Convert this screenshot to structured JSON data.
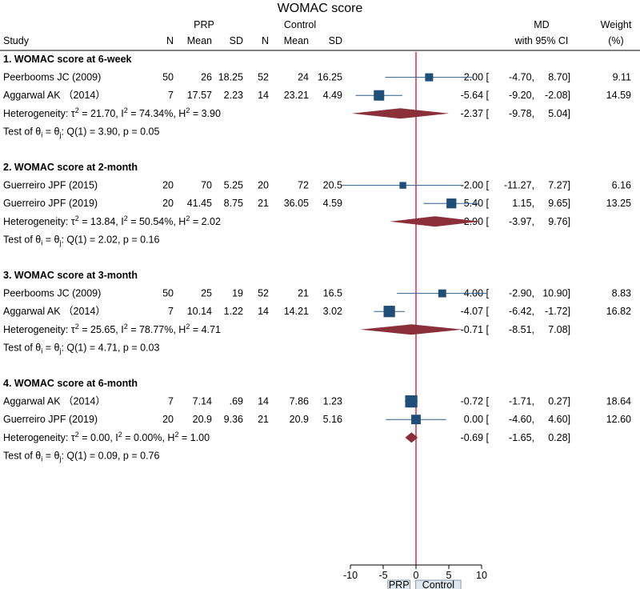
{
  "chart_data": {
    "type": "forest",
    "title": "WOMAC score",
    "header": {
      "study": "Study",
      "group1": "PRP",
      "group2": "Control",
      "n": "N",
      "mean": "Mean",
      "sd": "SD",
      "md1": "MD",
      "md2": "with 95% CI",
      "weight1": "Weight",
      "weight2": "(%)"
    },
    "xaxis": {
      "min": -10,
      "max": 10,
      "ticks": [
        -10,
        -5,
        0,
        5,
        10
      ],
      "tick_labels": [
        "-10",
        "-5",
        "0",
        "5",
        "10"
      ]
    },
    "favours": {
      "left": "PRP",
      "right": "Control"
    },
    "groups": [
      {
        "title": "1. WOMAC score at 6-week",
        "studies": [
          {
            "name": "Peerbooms JC (2009)",
            "n1": "50",
            "mean1": "26",
            "sd1": "18.25",
            "n2": "52",
            "mean2": "24",
            "sd2": "16.25",
            "md": 2.0,
            "lo": -4.7,
            "hi": 8.7,
            "ci": "2.00 [   -4.70,    8.70]",
            "weight": "9.11",
            "w": 9.11
          },
          {
            "name": "Aggarwal AK （2014）",
            "n1": "7",
            "mean1": "17.57",
            "sd1": "2.23",
            "n2": "14",
            "mean2": "23.21",
            "sd2": "4.49",
            "md": -5.64,
            "lo": -9.2,
            "hi": -2.08,
            "ci": "-5.64 [   -9.20,   -2.08]",
            "weight": "14.59",
            "w": 14.59
          }
        ],
        "pooled": {
          "md": -2.37,
          "lo": -9.78,
          "hi": 5.04,
          "ci": "-2.37 [   -9.78,    5.04]"
        },
        "heterogeneity": {
          "prefix": "Heterogeneity: ",
          "tau": "τ",
          "tau_val": " = 21.70, I",
          "i_val": " = 74.34%, H",
          "h_val": " = 3.90"
        },
        "test": {
          "prefix": "Test of θ",
          "mid": " = θ",
          "suffix": ": Q(1) = 3.90, p = 0.05"
        }
      },
      {
        "title": "2. WOMAC score at 2-month",
        "studies": [
          {
            "name": "Guerreiro JPF (2015)",
            "n1": "20",
            "mean1": "70",
            "sd1": "5.25",
            "n2": "20",
            "mean2": "72",
            "sd2": "20.5",
            "md": -2.0,
            "lo": -11.27,
            "hi": 7.27,
            "ci": "-2.00 [  -11.27,    7.27]",
            "weight": "6.16",
            "w": 6.16
          },
          {
            "name": "Guerreiro JPF (2019)",
            "n1": "20",
            "mean1": "41.45",
            "sd1": "8.75",
            "n2": "21",
            "mean2": "36.05",
            "sd2": "4.59",
            "md": 5.4,
            "lo": 1.15,
            "hi": 9.65,
            "ci": "5.40 [    1.15,    9.65]",
            "weight": "13.25",
            "w": 13.25
          }
        ],
        "pooled": {
          "md": 2.9,
          "lo": -3.97,
          "hi": 9.76,
          "ci": "2.90 [   -3.97,    9.76]"
        },
        "heterogeneity": {
          "prefix": "Heterogeneity: ",
          "tau": "τ",
          "tau_val": " = 13.84, I",
          "i_val": " = 50.54%, H",
          "h_val": " = 2.02"
        },
        "test": {
          "prefix": "Test of θ",
          "mid": " = θ",
          "suffix": ": Q(1) = 2.02, p = 0.16"
        }
      },
      {
        "title": "3. WOMAC score at 3-month",
        "studies": [
          {
            "name": "Peerbooms JC (2009)",
            "n1": "50",
            "mean1": "25",
            "sd1": "19",
            "n2": "52",
            "mean2": "21",
            "sd2": "16.5",
            "md": 4.0,
            "lo": -2.9,
            "hi": 10.9,
            "ci": "4.00 [   -2.90,   10.90]",
            "weight": "8.83",
            "w": 8.83
          },
          {
            "name": "Aggarwal AK （2014）",
            "n1": "7",
            "mean1": "10.14",
            "sd1": "1.22",
            "n2": "14",
            "mean2": "14.21",
            "sd2": "3.02",
            "md": -4.07,
            "lo": -6.42,
            "hi": -1.72,
            "ci": "-4.07 [   -6.42,   -1.72]",
            "weight": "16.82",
            "w": 16.82
          }
        ],
        "pooled": {
          "md": -0.71,
          "lo": -8.51,
          "hi": 7.08,
          "ci": "-0.71 [   -8.51,    7.08]"
        },
        "heterogeneity": {
          "prefix": "Heterogeneity: ",
          "tau": "τ",
          "tau_val": " = 25.65, I",
          "i_val": " = 78.77%, H",
          "h_val": " = 4.71"
        },
        "test": {
          "prefix": "Test of θ",
          "mid": " = θ",
          "suffix": ": Q(1) = 4.71, p = 0.03"
        }
      },
      {
        "title": "4. WOMAC score at 6-month",
        "studies": [
          {
            "name": "Aggarwal AK （2014）",
            "n1": "7",
            "mean1": "7.14",
            "sd1": ".69",
            "n2": "14",
            "mean2": "7.86",
            "sd2": "1.23",
            "md": -0.72,
            "lo": -1.71,
            "hi": 0.27,
            "ci": "-0.72 [   -1.71,    0.27]",
            "weight": "18.64",
            "w": 18.64
          },
          {
            "name": "Guerreiro JPF (2019)",
            "n1": "20",
            "mean1": "20.9",
            "sd1": "9.36",
            "n2": "21",
            "mean2": "20.9",
            "sd2": "5.16",
            "md": 0.0,
            "lo": -4.6,
            "hi": 4.6,
            "ci": "0.00 [   -4.60,    4.60]",
            "weight": "12.60",
            "w": 12.6
          }
        ],
        "pooled": {
          "md": -0.69,
          "lo": -1.65,
          "hi": 0.28,
          "ci": "-0.69 [   -1.65,    0.28]"
        },
        "heterogeneity": {
          "prefix": "Heterogeneity: ",
          "tau": "τ",
          "tau_val": " = 0.00, I",
          "i_val": " = 0.00%, H",
          "h_val": " = 1.00"
        },
        "test": {
          "prefix": "Test of θ",
          "mid": " = θ",
          "suffix": ": Q(1) = 0.09, p = 0.76"
        }
      }
    ],
    "colors": {
      "marker": "#1f4e79",
      "ci_line": "#2e5f8a",
      "diamond": "#8b2f3a",
      "null_line": "#c8102e"
    }
  }
}
